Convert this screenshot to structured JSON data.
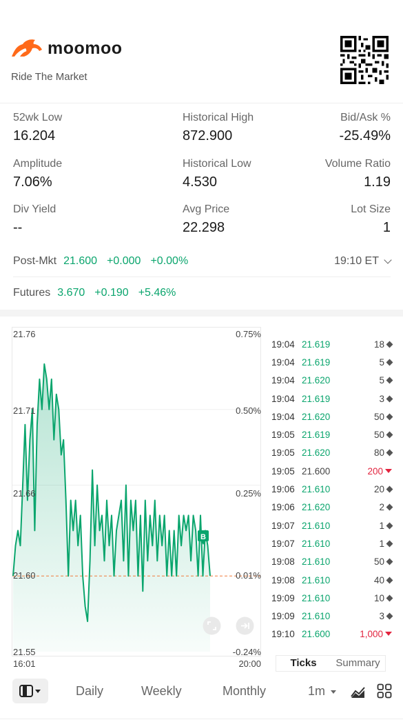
{
  "header": {
    "brand": "moomoo",
    "tagline": "Ride The Market"
  },
  "stats": [
    {
      "label": "52wk Low",
      "value": "16.204"
    },
    {
      "label": "Historical High",
      "value": "872.900"
    },
    {
      "label": "Bid/Ask %",
      "value": "-25.49%"
    },
    {
      "label": "Amplitude",
      "value": "7.06%"
    },
    {
      "label": "Historical Low",
      "value": "4.530"
    },
    {
      "label": "Volume Ratio",
      "value": "1.19"
    },
    {
      "label": "Div Yield",
      "value": "--"
    },
    {
      "label": "Avg Price",
      "value": "22.298"
    },
    {
      "label": "Lot Size",
      "value": "1"
    }
  ],
  "post_market": {
    "label": "Post-Mkt",
    "price": "21.600",
    "change": "+0.000",
    "pct": "+0.00%",
    "time": "19:10 ET"
  },
  "futures": {
    "label": "Futures",
    "price": "3.670",
    "change": "+0.190",
    "pct": "+5.46%"
  },
  "chart": {
    "y_left": [
      "21.76",
      "21.71",
      "21.66",
      "21.60",
      "21.55"
    ],
    "y_right": [
      "0.75%",
      "0.50%",
      "0.25%",
      "0.01%",
      "-0.24%"
    ],
    "x_start": "16:01",
    "x_end": "20:00",
    "marker": "B"
  },
  "chart_data": {
    "type": "area",
    "title": "",
    "xlabel": "",
    "ylabel": "",
    "x_range": [
      "16:01",
      "20:00"
    ],
    "ylim": [
      21.55,
      21.76
    ],
    "reference_line": 21.6,
    "series": [
      {
        "values": [
          21.6,
          21.62,
          21.63,
          21.62,
          21.66,
          21.7,
          21.65,
          21.69,
          21.71,
          21.63,
          21.7,
          21.73,
          21.71,
          21.74,
          21.73,
          21.71,
          21.73,
          21.69,
          21.72,
          21.71,
          21.68,
          21.69,
          21.65,
          21.6,
          21.65,
          21.63,
          21.65,
          21.62,
          21.64,
          21.6,
          21.58,
          21.57,
          21.61,
          21.67,
          21.62,
          21.66,
          21.63,
          21.64,
          21.61,
          21.65,
          21.62,
          21.64,
          21.6,
          21.63,
          21.64,
          21.65,
          21.61,
          21.66,
          21.6,
          21.65,
          21.63,
          21.65,
          21.6,
          21.64,
          21.59,
          21.65,
          21.61,
          21.64,
          21.62,
          21.65,
          21.61,
          21.64,
          21.62,
          21.64,
          21.6,
          21.63,
          21.6,
          21.63,
          21.6,
          21.64,
          21.62,
          21.64,
          21.63,
          21.64,
          21.61,
          21.64,
          21.63,
          21.6,
          21.64,
          21.6,
          21.63,
          21.62,
          21.6
        ]
      }
    ]
  },
  "ticks": [
    {
      "time": "19:04",
      "price": "21.619",
      "dir": "up",
      "vol": "18",
      "mark": "diamond"
    },
    {
      "time": "19:04",
      "price": "21.619",
      "dir": "up",
      "vol": "5",
      "mark": "diamond"
    },
    {
      "time": "19:04",
      "price": "21.620",
      "dir": "up",
      "vol": "5",
      "mark": "diamond"
    },
    {
      "time": "19:04",
      "price": "21.619",
      "dir": "up",
      "vol": "3",
      "mark": "diamond"
    },
    {
      "time": "19:04",
      "price": "21.620",
      "dir": "up",
      "vol": "50",
      "mark": "diamond"
    },
    {
      "time": "19:05",
      "price": "21.619",
      "dir": "up",
      "vol": "50",
      "mark": "diamond"
    },
    {
      "time": "19:05",
      "price": "21.620",
      "dir": "up",
      "vol": "80",
      "mark": "diamond"
    },
    {
      "time": "19:05",
      "price": "21.600",
      "dir": "flat",
      "vol": "200",
      "mark": "down"
    },
    {
      "time": "19:06",
      "price": "21.610",
      "dir": "up",
      "vol": "20",
      "mark": "diamond"
    },
    {
      "time": "19:06",
      "price": "21.620",
      "dir": "up",
      "vol": "2",
      "mark": "diamond"
    },
    {
      "time": "19:07",
      "price": "21.610",
      "dir": "up",
      "vol": "1",
      "mark": "diamond"
    },
    {
      "time": "19:07",
      "price": "21.610",
      "dir": "up",
      "vol": "1",
      "mark": "diamond"
    },
    {
      "time": "19:08",
      "price": "21.610",
      "dir": "up",
      "vol": "50",
      "mark": "diamond"
    },
    {
      "time": "19:08",
      "price": "21.610",
      "dir": "up",
      "vol": "40",
      "mark": "diamond"
    },
    {
      "time": "19:09",
      "price": "21.610",
      "dir": "up",
      "vol": "10",
      "mark": "diamond"
    },
    {
      "time": "19:09",
      "price": "21.610",
      "dir": "up",
      "vol": "3",
      "mark": "diamond"
    },
    {
      "time": "19:10",
      "price": "21.600",
      "dir": "up",
      "vol": "1,000",
      "mark": "down"
    }
  ],
  "ticks_tabs": {
    "ticks": "Ticks",
    "summary": "Summary"
  },
  "toolbar": {
    "daily": "Daily",
    "weekly": "Weekly",
    "monthly": "Monthly",
    "interval": "1m"
  },
  "colors": {
    "up": "#0aa56d",
    "down": "#e2233e",
    "brand": "#ff6a1a"
  }
}
